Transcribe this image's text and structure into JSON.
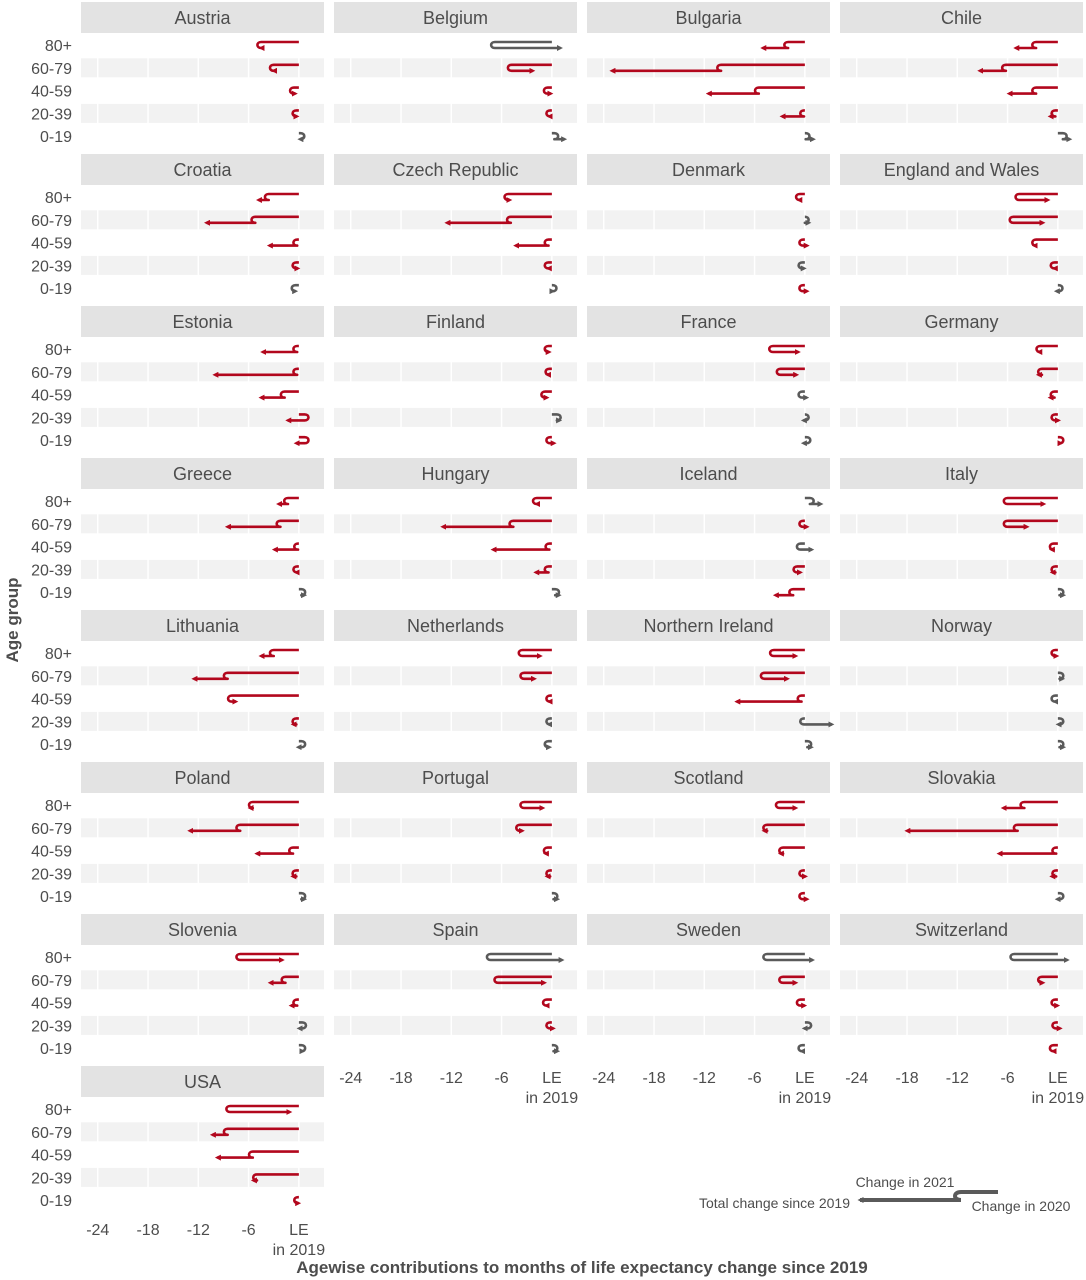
{
  "chart_data": {
    "type": "arrow-facet",
    "title": "",
    "xlabel": "Agewise contributions to months of life expectancy change since 2019",
    "ylabel": "Age group",
    "age_groups": [
      "80+",
      "60-79",
      "40-59",
      "20-39",
      "0-19"
    ],
    "x_ticks": [
      {
        "value": -24,
        "label": "-24"
      },
      {
        "value": -18,
        "label": "-18"
      },
      {
        "value": -12,
        "label": "-12"
      },
      {
        "value": -6,
        "label": "-6"
      },
      {
        "value": 0,
        "label": "LE"
      }
    ],
    "x_tick_sublabel": "in 2019",
    "xlim": [
      -26,
      3
    ],
    "legend": {
      "change_2021": "Change in 2021",
      "change_2020": "Change in 2020",
      "total": "Total change since 2019"
    },
    "colors": {
      "decline": "#b2071d",
      "gain": "#5a5a5a",
      "strip": "#e3e3e3",
      "band": "#f2f2f2",
      "text": "#4d4d4d"
    },
    "note": "Each arrow: starts at 0, moves to change in 2020, then adds change in 2021; head at total change since 2019 (months).",
    "countries": [
      {
        "name": "Austria",
        "data": [
          [
            -4.5,
            -5.0
          ],
          [
            -3.0,
            -3.5
          ],
          [
            -0.6,
            -0.9
          ],
          [
            -0.3,
            -0.7
          ],
          [
            0.2,
            0.6
          ]
        ]
      },
      {
        "name": "Belgium",
        "data": [
          [
            -6.8,
            1.5
          ],
          [
            -4.8,
            -1.8
          ],
          [
            -0.5,
            -0.6
          ],
          [
            -0.2,
            -0.8
          ],
          [
            0.3,
            2.0
          ]
        ]
      },
      {
        "name": "Bulgaria",
        "data": [
          [
            -2.0,
            -5.5
          ],
          [
            -10.0,
            -23.5
          ],
          [
            -5.5,
            -12.0
          ],
          [
            -0.1,
            -3.2
          ],
          [
            0.1,
            1.5
          ]
        ]
      },
      {
        "name": "Chile",
        "data": [
          [
            -2.6,
            -5.5
          ],
          [
            -6.2,
            -9.8
          ],
          [
            -2.6,
            -6.3
          ],
          [
            -0.3,
            -1.4
          ],
          [
            0.6,
            1.9
          ]
        ]
      },
      {
        "name": "Croatia",
        "data": [
          [
            -3.6,
            -5.3
          ],
          [
            -5.2,
            -11.5
          ],
          [
            -0.2,
            -4.0
          ],
          [
            -0.3,
            -0.6
          ],
          [
            -0.4,
            0.1
          ]
        ]
      },
      {
        "name": "Czech Republic",
        "data": [
          [
            -5.2,
            -5.5
          ],
          [
            -4.9,
            -13.0
          ],
          [
            -0.4,
            -4.8
          ],
          [
            -0.4,
            -0.9
          ],
          [
            0.1,
            0.6
          ]
        ]
      },
      {
        "name": "Denmark",
        "data": [
          [
            -0.6,
            -1.2
          ],
          [
            0.0,
            0.0
          ],
          [
            -0.2,
            -0.2
          ],
          [
            -0.3,
            0.4
          ],
          [
            -0.2,
            -0.2
          ]
        ]
      },
      {
        "name": "England and Wales",
        "data": [
          [
            -4.6,
            -0.7
          ],
          [
            -5.3,
            -1.3
          ],
          [
            -2.6,
            -3.3
          ],
          [
            -0.4,
            -0.9
          ],
          [
            0.1,
            0.3
          ]
        ]
      },
      {
        "name": "Estonia",
        "data": [
          [
            -0.2,
            -4.8
          ],
          [
            -0.2,
            -10.5
          ],
          [
            -1.7,
            -5.0
          ],
          [
            0.7,
            -1.8
          ],
          [
            0.7,
            -0.8
          ]
        ]
      },
      {
        "name": "Finland",
        "data": [
          [
            -0.4,
            -0.8
          ],
          [
            -0.3,
            -1.0
          ],
          [
            -0.8,
            -0.1
          ],
          [
            0.6,
            1.4
          ],
          [
            -0.2,
            -0.2
          ]
        ]
      },
      {
        "name": "France",
        "data": [
          [
            -3.8,
            -0.3
          ],
          [
            -2.9,
            -0.5
          ],
          [
            -0.3,
            0.7
          ],
          [
            0.0,
            0.3
          ],
          [
            0.2,
            0.3
          ]
        ]
      },
      {
        "name": "Germany",
        "data": [
          [
            -2.1,
            -1.8
          ],
          [
            -1.9,
            -2.8
          ],
          [
            -0.4,
            -1.4
          ],
          [
            -0.3,
            -0.4
          ],
          [
            0.2,
            -0.1
          ]
        ]
      },
      {
        "name": "Greece",
        "data": [
          [
            -1.3,
            -2.9
          ],
          [
            -2.2,
            -9.0
          ],
          [
            -0.1,
            -3.4
          ],
          [
            -0.2,
            -0.8
          ],
          [
            0.3,
            0.2
          ]
        ]
      },
      {
        "name": "Hungary",
        "data": [
          [
            -1.8,
            -2.3
          ],
          [
            -4.6,
            -13.5
          ],
          [
            -0.3,
            -7.5
          ],
          [
            -0.4,
            -2.4
          ],
          [
            0.4,
            0.4
          ]
        ]
      },
      {
        "name": "Iceland",
        "data": [
          [
            0.6,
            2.4
          ],
          [
            -0.2,
            -0.2
          ],
          [
            -0.5,
            1.3
          ],
          [
            -0.9,
            -1.0
          ],
          [
            -1.4,
            -4.0
          ]
        ]
      },
      {
        "name": "Italy",
        "data": [
          [
            -6.0,
            -1.2
          ],
          [
            -6.0,
            -3.2
          ],
          [
            -0.5,
            -0.3
          ],
          [
            -0.3,
            -0.2
          ],
          [
            0.2,
            0.2
          ]
        ]
      },
      {
        "name": "Lithuania",
        "data": [
          [
            -3.0,
            -5.0
          ],
          [
            -8.5,
            -13.0
          ],
          [
            -8.0,
            -8.0
          ],
          [
            -0.3,
            -0.2
          ],
          [
            0.3,
            0.4
          ]
        ]
      },
      {
        "name": "Netherlands",
        "data": [
          [
            -3.5,
            -0.9
          ],
          [
            -3.3,
            -1.6
          ],
          [
            -0.2,
            -0.8
          ],
          [
            -0.2,
            0.1
          ],
          [
            -0.4,
            0.2
          ]
        ]
      },
      {
        "name": "Northern Ireland",
        "data": [
          [
            -3.7,
            -0.6
          ],
          [
            -4.8,
            -1.6
          ],
          [
            -0.4,
            -8.6
          ],
          [
            -0.1,
            3.7
          ],
          [
            0.3,
            0.3
          ]
        ]
      },
      {
        "name": "Norway",
        "data": [
          [
            -0.3,
            -0.6
          ],
          [
            0.2,
            0.1
          ],
          [
            -0.3,
            0.1
          ],
          [
            0.2,
            0.5
          ],
          [
            0.2,
            0.2
          ]
        ]
      },
      {
        "name": "Poland",
        "data": [
          [
            -5.5,
            -6.3
          ],
          [
            -7.0,
            -13.5
          ],
          [
            -0.7,
            -5.5
          ],
          [
            -0.3,
            -1.2
          ],
          [
            0.3,
            0.2
          ]
        ]
      },
      {
        "name": "Portugal",
        "data": [
          [
            -3.3,
            -0.6
          ],
          [
            -3.8,
            -4.0
          ],
          [
            -0.5,
            -0.3
          ],
          [
            -0.2,
            -0.1
          ],
          [
            0.2,
            0.2
          ]
        ]
      },
      {
        "name": "Scotland",
        "data": [
          [
            -3.0,
            -0.6
          ],
          [
            -4.5,
            -4.4
          ],
          [
            -2.6,
            -3.4
          ],
          [
            -0.2,
            -0.4
          ],
          [
            -0.2,
            -0.2
          ]
        ]
      },
      {
        "name": "Slovakia",
        "data": [
          [
            -4.0,
            -7.0
          ],
          [
            -4.8,
            -18.5
          ],
          [
            -0.2,
            -7.5
          ],
          [
            -0.2,
            -1.2
          ],
          [
            0.2,
            0.4
          ]
        ]
      },
      {
        "name": "Slovenia",
        "data": [
          [
            -7.0,
            -1.5
          ],
          [
            -1.6,
            -3.9
          ],
          [
            -0.2,
            -1.4
          ],
          [
            0.4,
            0.5
          ],
          [
            0.3,
            0.0
          ]
        ]
      },
      {
        "name": "Spain",
        "data": [
          [
            -7.3,
            1.7
          ],
          [
            -6.4,
            -0.4
          ],
          [
            -0.6,
            -0.2
          ],
          [
            -0.2,
            -0.3
          ],
          [
            0.2,
            0.2
          ]
        ]
      },
      {
        "name": "Sweden",
        "data": [
          [
            -4.5,
            1.4
          ],
          [
            -2.6,
            -0.6
          ],
          [
            -0.5,
            -0.5
          ],
          [
            0.3,
            0.4
          ],
          [
            -0.3,
            0.1
          ]
        ]
      },
      {
        "name": "Switzerland",
        "data": [
          [
            -5.2,
            1.6
          ],
          [
            -1.9,
            -1.3
          ],
          [
            -0.3,
            -0.5
          ],
          [
            -0.2,
            -0.2
          ],
          [
            -0.5,
            -0.1
          ]
        ]
      },
      {
        "name": "USA",
        "data": [
          [
            -8.2,
            -0.6
          ],
          [
            -8.5,
            -10.8
          ],
          [
            -5.5,
            -10.2
          ],
          [
            -5.0,
            -5.9
          ],
          [
            -0.1,
            -0.5
          ]
        ]
      }
    ]
  }
}
